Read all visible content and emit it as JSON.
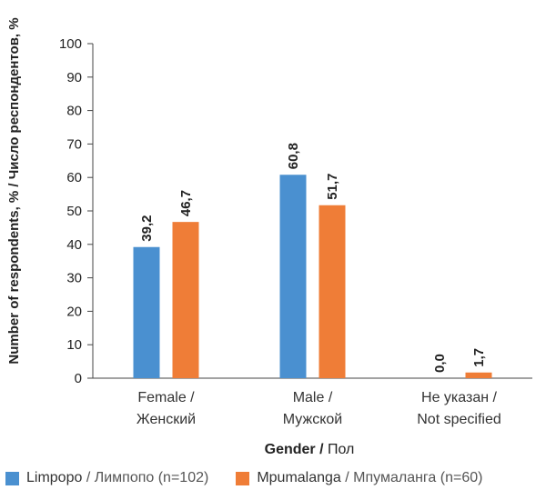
{
  "chart_data": {
    "type": "bar",
    "title": "",
    "ylabel": "Number of respondents, % / Число респондентов, %",
    "xlabel": {
      "main": "Gender",
      "sep": " / ",
      "alt": "Пол"
    },
    "ylim": [
      0,
      100
    ],
    "yticks": [
      "100",
      "90",
      "80",
      "70",
      "60",
      "50",
      "40",
      "30",
      "20",
      "10",
      "0"
    ],
    "grid": false,
    "legend_position": "bottom",
    "categories": [
      {
        "line1": "Female /",
        "line2": "Женский"
      },
      {
        "line1": "Male /",
        "line2": "Мужской"
      },
      {
        "line1": "Не указан /",
        "line2": "Not specified"
      }
    ],
    "series": [
      {
        "name": "Limpopo / Лимпопо (n=102)",
        "name_main": "Limpopo",
        "name_alt": " / Лимпопо (n=102)",
        "color": "#4a90d0",
        "values": [
          39.2,
          60.8,
          0.0
        ],
        "labels": [
          "39,2",
          "60,8",
          "0,0"
        ]
      },
      {
        "name": "Mpumalanga / Мпумаланга (n=60)",
        "name_main": "Mpumalanga",
        "name_alt": " / Мпумаланга (n=60)",
        "color": "#ef7d37",
        "values": [
          46.7,
          51.7,
          1.7
        ],
        "labels": [
          "46,7",
          "51,7",
          "1,7"
        ]
      }
    ]
  }
}
